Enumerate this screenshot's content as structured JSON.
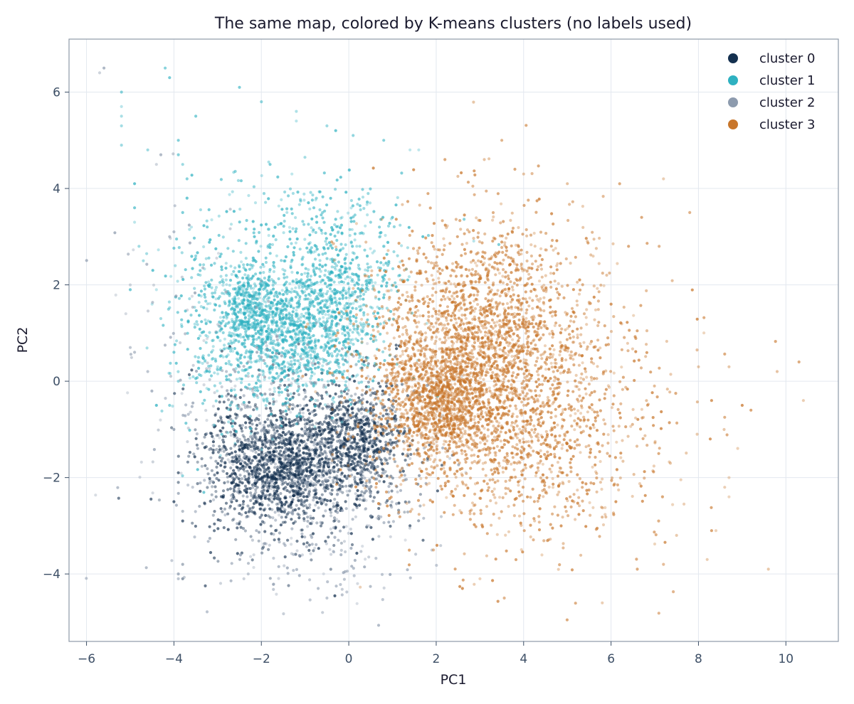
{
  "chart_data": {
    "type": "scatter",
    "title": "The same map, colored by K-means clusters (no labels used)",
    "xlabel": "PC1",
    "ylabel": "PC2",
    "xlim": [
      -6.4,
      11.2
    ],
    "ylim": [
      -5.4,
      7.1
    ],
    "xticks": [
      -6,
      -4,
      -2,
      0,
      2,
      4,
      6,
      8,
      10
    ],
    "xtick_labels": [
      "−6",
      "−4",
      "−2",
      "0",
      "2",
      "4",
      "6",
      "8",
      "10"
    ],
    "yticks": [
      -4,
      -2,
      0,
      2,
      4,
      6
    ],
    "ytick_labels": [
      "−4",
      "−2",
      "0",
      "2",
      "4",
      "6"
    ],
    "grid": true,
    "legend_position": "top-right",
    "series": [
      {
        "name": "cluster 0",
        "color": "#14304f",
        "clusters": [
          {
            "cx": -1.6,
            "cy": -1.8,
            "sx": 0.55,
            "sy": 0.55,
            "n": 700
          },
          {
            "cx": 0.2,
            "cy": -1.2,
            "sx": 0.55,
            "sy": 0.6,
            "n": 600
          },
          {
            "cx": -1.0,
            "cy": -1.6,
            "sx": 1.1,
            "sy": 0.85,
            "n": 900
          },
          {
            "cx": -2.7,
            "cy": -1.6,
            "sx": 0.35,
            "sy": 0.9,
            "n": 150
          }
        ],
        "points": [
          [
            -3.8,
            -2.9
          ],
          [
            -3.8,
            -2.7
          ],
          [
            -3.9,
            -2.1
          ],
          [
            -4.0,
            -1.0
          ],
          [
            -3.8,
            -4.1
          ],
          [
            -3.8,
            -3.8
          ],
          [
            -4.0,
            -2.5
          ],
          [
            -3.9,
            -1.9
          ],
          [
            -0.9,
            -3.4
          ],
          [
            -1.4,
            -3.3
          ],
          [
            1.4,
            -3.0
          ],
          [
            1.7,
            -3.3
          ],
          [
            0.5,
            -2.8
          ]
        ]
      },
      {
        "name": "cluster 1",
        "color": "#2eb1c1",
        "clusters": [
          {
            "cx": -2.3,
            "cy": 1.6,
            "sx": 0.3,
            "sy": 0.35,
            "n": 250
          },
          {
            "cx": -1.4,
            "cy": 1.0,
            "sx": 0.95,
            "sy": 0.75,
            "n": 1300
          },
          {
            "cx": -0.3,
            "cy": 1.8,
            "sx": 0.7,
            "sy": 0.7,
            "n": 500
          },
          {
            "cx": -0.8,
            "cy": 3.2,
            "sx": 1.2,
            "sy": 0.6,
            "n": 220
          },
          {
            "cx": -3.2,
            "cy": 1.2,
            "sx": 0.6,
            "sy": 1.2,
            "n": 170
          }
        ],
        "points": [
          [
            -5.2,
            6.0
          ],
          [
            -5.2,
            5.7
          ],
          [
            -5.2,
            5.5
          ],
          [
            -5.2,
            5.3
          ],
          [
            -5.2,
            4.9
          ],
          [
            -4.9,
            4.1
          ],
          [
            -4.9,
            3.6
          ],
          [
            -4.9,
            3.3
          ],
          [
            -4.8,
            2.8
          ],
          [
            -4.7,
            2.5
          ],
          [
            -5.0,
            1.9
          ],
          [
            -4.5,
            1.6
          ],
          [
            -4.4,
            1.9
          ],
          [
            -4.3,
            1.3
          ],
          [
            -4.0,
            0.6
          ],
          [
            -4.2,
            6.5
          ],
          [
            -4.1,
            6.3
          ],
          [
            -3.9,
            5.0
          ],
          [
            -3.9,
            4.7
          ],
          [
            -3.8,
            4.5
          ],
          [
            -3.7,
            4.2
          ],
          [
            -3.8,
            3.5
          ],
          [
            -3.7,
            3.8
          ],
          [
            -3.6,
            3.2
          ],
          [
            -3.5,
            2.6
          ],
          [
            -3.4,
            2.2
          ],
          [
            -3.3,
            1.8
          ],
          [
            -3.9,
            0.0
          ],
          [
            -4.1,
            -0.5
          ],
          [
            -4.4,
            -0.5
          ],
          [
            -2.5,
            6.1
          ],
          [
            -2.0,
            5.8
          ],
          [
            -1.2,
            5.6
          ],
          [
            -1.2,
            5.4
          ],
          [
            -0.5,
            5.3
          ],
          [
            -0.3,
            5.2
          ],
          [
            0.1,
            5.1
          ],
          [
            0.8,
            5.0
          ],
          [
            1.4,
            4.8
          ],
          [
            1.6,
            4.8
          ],
          [
            -1.8,
            4.5
          ],
          [
            -1.3,
            4.3
          ],
          [
            -0.8,
            3.6
          ],
          [
            -0.6,
            3.5
          ],
          [
            0.5,
            3.3
          ],
          [
            0.7,
            3.2
          ],
          [
            1.0,
            3.4
          ],
          [
            -2.3,
            2.1
          ],
          [
            0.3,
            0.8
          ],
          [
            0.2,
            0.6
          ],
          [
            -3.0,
            0.3
          ],
          [
            -2.8,
            0.1
          ],
          [
            -3.5,
            5.5
          ],
          [
            -4.6,
            4.8
          ]
        ]
      },
      {
        "name": "cluster 2",
        "color": "#8d9bae",
        "clusters": [
          {
            "cx": -1.2,
            "cy": -1.5,
            "sx": 1.4,
            "sy": 1.2,
            "n": 450
          },
          {
            "cx": -3.5,
            "cy": 0.5,
            "sx": 1.0,
            "sy": 2.0,
            "n": 70
          },
          {
            "cx": -0.5,
            "cy": -3.6,
            "sx": 1.0,
            "sy": 0.5,
            "n": 80
          }
        ],
        "points": [
          [
            -5.6,
            6.5
          ],
          [
            -5.7,
            6.4
          ],
          [
            -5.0,
            2.0
          ],
          [
            -5.0,
            0.7
          ],
          [
            -4.9,
            0.6
          ],
          [
            -5.1,
            1.4
          ],
          [
            -4.6,
            0.2
          ],
          [
            -4.3,
            4.7
          ],
          [
            -4.4,
            4.5
          ],
          [
            -4.1,
            3.0
          ],
          [
            -4.0,
            3.1
          ],
          [
            -3.9,
            -4.1
          ],
          [
            -3.9,
            -4.0
          ],
          [
            -2.1,
            0.7
          ],
          [
            -2.1,
            0.6
          ],
          [
            -2.0,
            0.5
          ],
          [
            -2.3,
            0.4
          ],
          [
            -2.3,
            0.1
          ],
          [
            -2.5,
            0.3
          ],
          [
            -2.6,
            -0.1
          ],
          [
            -2.7,
            0.0
          ],
          [
            -2.4,
            -0.3
          ],
          [
            -2.2,
            -0.2
          ],
          [
            -2.1,
            -0.3
          ],
          [
            -2.8,
            0.2
          ],
          [
            -2.6,
            0.2
          ],
          [
            -1.9,
            0.8
          ],
          [
            -0.5,
            -4.5
          ],
          [
            -0.6,
            -4.8
          ],
          [
            -0.7,
            -4.3
          ],
          [
            -2.4,
            -4.1
          ],
          [
            -2.3,
            -4.0
          ],
          [
            0.2,
            -4.2
          ]
        ]
      },
      {
        "name": "cluster 3",
        "color": "#c8762b",
        "clusters": [
          {
            "cx": 2.1,
            "cy": -0.4,
            "sx": 0.55,
            "sy": 0.55,
            "n": 650
          },
          {
            "cx": 2.6,
            "cy": 0.0,
            "sx": 1.2,
            "sy": 1.3,
            "n": 2200
          },
          {
            "cx": 3.6,
            "cy": 1.5,
            "sx": 1.1,
            "sy": 1.1,
            "n": 700
          },
          {
            "cx": 4.6,
            "cy": -1.0,
            "sx": 1.0,
            "sy": 1.2,
            "n": 500
          },
          {
            "cx": 6.0,
            "cy": -1.0,
            "sx": 1.2,
            "sy": 1.4,
            "n": 160
          }
        ],
        "points": [
          [
            3.5,
            5.0
          ],
          [
            2.2,
            4.6
          ],
          [
            3.1,
            4.6
          ],
          [
            3.8,
            4.4
          ],
          [
            4.0,
            4.3
          ],
          [
            5.0,
            4.1
          ],
          [
            7.2,
            4.2
          ],
          [
            7.8,
            3.5
          ],
          [
            6.7,
            3.4
          ],
          [
            7.1,
            2.8
          ],
          [
            8.0,
            0.3
          ],
          [
            8.7,
            0.3
          ],
          [
            9.8,
            0.2
          ],
          [
            10.3,
            0.4
          ],
          [
            10.4,
            -0.4
          ],
          [
            9.0,
            -0.5
          ],
          [
            9.2,
            -0.6
          ],
          [
            8.3,
            -0.4
          ],
          [
            8.6,
            -2.2
          ],
          [
            8.7,
            -2.0
          ],
          [
            8.7,
            -2.4
          ],
          [
            8.4,
            -3.1
          ],
          [
            8.3,
            -3.1
          ],
          [
            9.6,
            -3.9
          ],
          [
            8.2,
            -3.7
          ],
          [
            7.5,
            -3.2
          ],
          [
            7.2,
            -3.8
          ],
          [
            6.6,
            -3.9
          ],
          [
            5.8,
            -4.6
          ],
          [
            3.0,
            -4.1
          ],
          [
            2.6,
            -4.3
          ],
          [
            6.4,
            2.8
          ],
          [
            6.0,
            1.6
          ],
          [
            5.9,
            2.2
          ]
        ]
      }
    ]
  }
}
